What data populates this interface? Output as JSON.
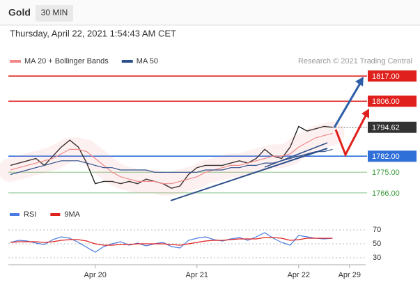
{
  "header": {
    "title": "Gold",
    "interval": "30 MIN",
    "timestamp": "Thursday, April 22, 2021 1:54:43 AM CET"
  },
  "chart_data": [
    {
      "type": "line",
      "credit": "Research © 2021 Trading Central",
      "ylim": [
        1762,
        1821
      ],
      "yticks": [
        {
          "value": 1817,
          "label": "1817.00"
        },
        {
          "value": 1806,
          "label": "1806.00"
        },
        {
          "value": 1794.62,
          "label": "1794.62"
        },
        {
          "value": 1782,
          "label": "1782.00"
        },
        {
          "value": 1775,
          "label": "1775.00"
        },
        {
          "value": 1766,
          "label": "1766.00"
        }
      ],
      "ytick_colors": [
        "#e0201c",
        "#e0201c",
        "#333333",
        "#2f6fd8",
        "#3a9a3a",
        "#3a9a3a"
      ],
      "ytick_boxed": [
        true,
        true,
        true,
        true,
        false,
        false
      ],
      "series": [
        {
          "color": "#222222",
          "values": [
            1778,
            1779,
            1780,
            1781,
            1778,
            1782,
            1786,
            1789,
            1786,
            1779,
            1770,
            1771,
            1771,
            1770,
            1771,
            1770,
            1772,
            1771,
            1770,
            1768,
            1769,
            1774,
            1777,
            1778,
            1778,
            1778,
            1779,
            1780,
            1779,
            1781,
            1785,
            1782,
            1781,
            1786,
            1795,
            1793,
            1794,
            1795,
            1794.62,
            null,
            null
          ]
        },
        {
          "name": "MA 20 + Bollinger Bands",
          "color": "#f08a8a",
          "values": [
            1776,
            1777,
            1778,
            1779,
            1780,
            1781,
            1783,
            1785,
            1785,
            1784,
            1781,
            1778,
            1775,
            1773,
            1772,
            1771,
            1771,
            1771,
            1770,
            1770,
            1771,
            1772,
            1773,
            1775,
            1776,
            1777,
            1778,
            1778,
            1779,
            1780,
            1781,
            1782,
            1782,
            1783,
            1786,
            1788,
            1790,
            1791,
            1792,
            null,
            null
          ]
        },
        {
          "name": "MA 50",
          "color": "#2d4f8a",
          "values": [
            1774,
            1775,
            1776,
            1777,
            1778,
            1779,
            1780,
            1780,
            1780,
            1779,
            1778,
            1777,
            1777,
            1776,
            1776,
            1776,
            1776,
            1775,
            1775,
            1775,
            1775,
            1775,
            1775,
            1776,
            1776,
            1776,
            1777,
            1777,
            1778,
            1778,
            1779,
            1779,
            1780,
            1781,
            1782,
            1783,
            1784,
            1784,
            1785,
            null,
            null
          ]
        }
      ]
    },
    {
      "type": "line",
      "categories": [
        null,
        null,
        null,
        null,
        null,
        null,
        null,
        null,
        null,
        null,
        "Apr 20",
        null,
        null,
        null,
        null,
        null,
        null,
        null,
        null,
        null,
        null,
        null,
        "Apr 21",
        null,
        null,
        null,
        null,
        null,
        null,
        null,
        null,
        null,
        null,
        null,
        "Apr 22",
        null,
        null,
        null,
        null,
        null,
        "Apr 29"
      ],
      "ylim": [
        25,
        75
      ],
      "yticks": [
        70,
        50,
        30
      ],
      "series": [
        {
          "name": "RSI",
          "color": "#4a7be0",
          "values": [
            52,
            55,
            54,
            51,
            49,
            56,
            60,
            58,
            52,
            45,
            38,
            46,
            50,
            53,
            48,
            51,
            47,
            50,
            52,
            46,
            44,
            55,
            58,
            60,
            56,
            54,
            57,
            59,
            55,
            60,
            66,
            58,
            52,
            48,
            62,
            60,
            58,
            57,
            58,
            null,
            null
          ]
        },
        {
          "name": "9MA",
          "color": "#e0201c",
          "values": [
            52,
            53,
            53,
            53,
            52,
            53,
            55,
            56,
            56,
            54,
            50,
            48,
            48,
            49,
            49,
            50,
            50,
            50,
            50,
            49,
            48,
            50,
            52,
            54,
            55,
            55,
            56,
            57,
            57,
            57,
            59,
            59,
            58,
            55,
            56,
            58,
            58,
            58,
            58,
            null,
            null
          ]
        }
      ]
    }
  ]
}
